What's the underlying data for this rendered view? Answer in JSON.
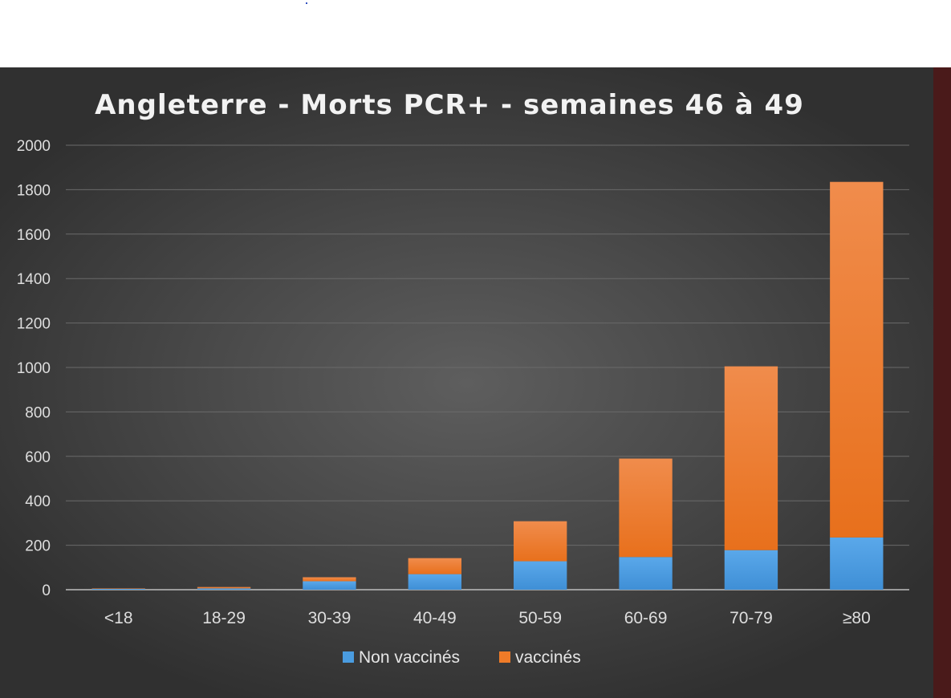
{
  "chart_data": {
    "type": "bar",
    "stacked": true,
    "title": "Angleterre - Morts PCR+ - semaines 46 à 49",
    "xlabel": "",
    "ylabel": "",
    "ylim": [
      0,
      2000
    ],
    "yticks": [
      "0",
      "200",
      "400",
      "600",
      "800",
      "1000",
      "1200",
      "1400",
      "1600",
      "1800",
      "2000"
    ],
    "grid": true,
    "legend": "bottom-center",
    "categories": [
      "<18",
      "18-29",
      "30-39",
      "40-49",
      "50-59",
      "60-69",
      "70-79",
      "≥80"
    ],
    "series": [
      {
        "name": "Non vaccinés",
        "color": "#4a9ce0",
        "values": [
          4,
          6,
          38,
          70,
          128,
          147,
          178,
          235
        ]
      },
      {
        "name": "vaccinés",
        "color": "#ef7b28",
        "values": [
          2,
          6,
          18,
          72,
          180,
          443,
          827,
          1600
        ]
      }
    ]
  }
}
